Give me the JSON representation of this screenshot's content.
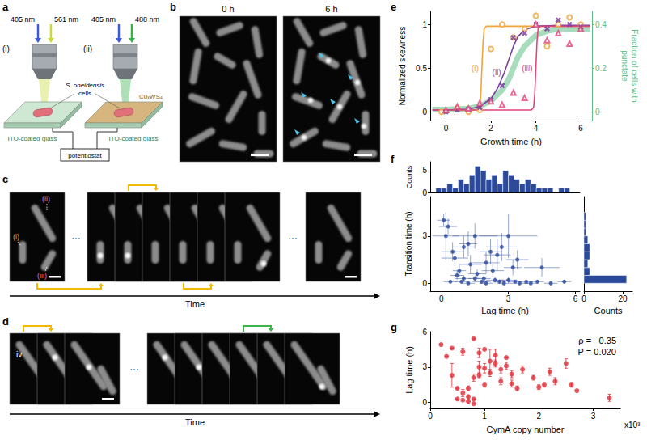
{
  "panel_labels": [
    "a",
    "b",
    "c",
    "d",
    "e",
    "f",
    "g"
  ],
  "schematic": {
    "setups": [
      {
        "label": "(i)",
        "lasers": [
          "405 nm",
          "561 nm"
        ],
        "substrate": "ITO-coated glass"
      },
      {
        "label": "(ii)",
        "lasers": [
          "405 nm",
          "488 nm"
        ],
        "substrate": "ITO-coated glass",
        "coating": "CuₓWS₄"
      }
    ],
    "cells": "S. oneidensis cells",
    "instrument": "potentiostat"
  },
  "micrographs": {
    "b": {
      "frames": [
        "0 h",
        "6 h"
      ]
    },
    "c": {
      "cells": [
        "(i)",
        "(ii)",
        "(iii)"
      ],
      "ellipsis": "...",
      "arrow": "Time"
    },
    "d": {
      "cells": [
        "iv"
      ],
      "ellipsis": "...",
      "arrow": "Time"
    }
  },
  "chart_data": [
    {
      "type": "line",
      "xlabel": "Growth time (h)",
      "ylabel": "Normalized skewness",
      "y2label": "Fraction of cells with punctate",
      "xlim": [
        -0.7,
        6.5
      ],
      "xticks": [
        0,
        2,
        4,
        6
      ],
      "ylim": [
        -0.1,
        1.15
      ],
      "yticks": [
        0,
        0.5,
        1
      ],
      "y2lim": [
        -0.04,
        0.46
      ],
      "y2ticks": [
        0,
        0.2,
        0.4
      ],
      "series": [
        {
          "type": "line",
          "annotation": "(i)",
          "color": "#f2a33a",
          "x": [
            -0.6,
            1.4,
            1.5,
            1.55,
            1.6,
            1.65,
            1.7,
            1.8,
            6.4
          ],
          "values": [
            0.02,
            0.02,
            0.05,
            0.2,
            0.5,
            0.8,
            0.95,
            0.98,
            0.98
          ]
        },
        {
          "type": "line",
          "annotation": "(ii)",
          "color": "#7b3f9e",
          "x": [
            -0.6,
            0,
            1,
            1.5,
            2,
            2.3,
            2.6,
            2.8,
            3,
            3.2,
            3.5,
            4,
            5,
            6.4
          ],
          "values": [
            0.02,
            0.02,
            0.03,
            0.06,
            0.15,
            0.27,
            0.45,
            0.6,
            0.75,
            0.86,
            0.94,
            0.98,
            0.99,
            0.99
          ]
        },
        {
          "type": "line",
          "annotation": "(iii)",
          "color": "#e0457b",
          "x": [
            -0.6,
            3.8,
            3.9,
            3.95,
            4.0,
            4.05,
            4.1,
            4.2,
            6.4
          ],
          "values": [
            0.02,
            0.02,
            0.05,
            0.2,
            0.5,
            0.8,
            0.95,
            0.98,
            0.98
          ]
        },
        {
          "type": "line",
          "axis": "y2",
          "color": "#5fbf86",
          "x": [
            -0.6,
            0,
            1,
            1.5,
            2,
            2.5,
            2.8,
            3,
            3.2,
            3.5,
            4,
            4.5,
            5,
            6.4
          ],
          "values": [
            0.01,
            0.01,
            0.015,
            0.025,
            0.05,
            0.1,
            0.15,
            0.2,
            0.25,
            0.3,
            0.35,
            0.37,
            0.38,
            0.38
          ]
        },
        {
          "type": "scatter",
          "marker": "circle",
          "color": "#f2a33a",
          "x": [
            -0.2,
            0.5,
            1.0,
            1.5,
            2.0,
            2.5,
            3.0,
            3.5,
            4.0,
            4.5,
            5.0,
            5.5,
            6.0
          ],
          "values": [
            0.0,
            0.04,
            0.0,
            0.02,
            0.72,
            1.0,
            0.85,
            0.95,
            1.1,
            0.75,
            1.0,
            1.08,
            1.0
          ]
        },
        {
          "type": "scatter",
          "marker": "cross",
          "color": "#7b3f9e",
          "x": [
            0,
            0.5,
            1,
            1.5,
            2,
            2.5,
            3,
            3.5,
            4,
            4.5,
            5,
            5.5,
            6
          ],
          "values": [
            0.0,
            0.02,
            0.03,
            0.05,
            0.14,
            0.3,
            0.85,
            0.9,
            1.0,
            0.95,
            1.05,
            1.0,
            0.97
          ]
        },
        {
          "type": "scatter",
          "marker": "triangle",
          "color": "#e0457b",
          "x": [
            0,
            0.5,
            1,
            1.5,
            2,
            2.5,
            3,
            3.5,
            4,
            4.5,
            5,
            5.5,
            6
          ],
          "values": [
            0.02,
            0.06,
            0.04,
            0.1,
            0.12,
            0.08,
            0.22,
            0.16,
            1.0,
            0.82,
            0.9,
            0.78,
            0.95
          ]
        }
      ]
    },
    {
      "type": "scatter",
      "color": "#2b4a9c",
      "xlabel": "Lag time (h)",
      "ylabel": "Transition time (h)",
      "xlim": [
        -0.5,
        6.2
      ],
      "xticks": [
        0,
        3,
        6
      ],
      "ylim": [
        -0.5,
        5.5
      ],
      "yticks": [
        0,
        3
      ],
      "x": [
        0.1,
        0.3,
        0.2,
        0.5,
        0.6,
        0.8,
        0.7,
        1.0,
        1.2,
        1.0,
        1.3,
        1.5,
        1.6,
        1.5,
        1.8,
        2.0,
        2.2,
        2.3,
        2.5,
        2.6,
        2.7,
        3.0,
        3.0,
        3.2,
        3.3,
        3.5,
        3.8,
        4.0,
        4.3,
        4.5,
        4.9,
        5.5,
        0.4,
        1.2,
        2.0,
        2.4,
        2.8,
        3.4,
        1.9,
        0.9
      ],
      "values": [
        4.0,
        3.6,
        3.0,
        2.0,
        1.6,
        0.8,
        0.5,
        0.3,
        2.5,
        2.3,
        1.2,
        3.0,
        0.6,
        0.3,
        0.1,
        1.3,
        2.0,
        0.8,
        1.8,
        0.1,
        2.3,
        3.0,
        0.2,
        1.0,
        0.1,
        0.0,
        0.1,
        0.0,
        0.1,
        1.0,
        0.0,
        0.1,
        0.1,
        0.0,
        0.0,
        0.2,
        0.0,
        1.5,
        0.3,
        0.1
      ],
      "x_err": [
        0.3,
        0.4,
        0.6,
        0.5,
        0.6,
        0.3,
        0.3,
        0.4,
        0.4,
        0.5,
        0.5,
        1.0,
        0.4,
        0.3,
        0.4,
        0.6,
        0.5,
        0.5,
        0.6,
        0.3,
        0.7,
        1.3,
        0.4,
        0.4,
        0.3,
        0.4,
        0.3,
        0.3,
        0.3,
        0.8,
        0.3,
        0.3,
        0.3,
        0.3,
        0.3,
        0.4,
        0.3,
        0.5,
        0.3,
        0.3
      ],
      "y_err": [
        0.4,
        0.5,
        1.5,
        0.6,
        0.5,
        0.4,
        0.3,
        0.2,
        0.8,
        0.7,
        0.6,
        0.8,
        0.3,
        0.2,
        0.1,
        0.7,
        0.8,
        0.4,
        1.0,
        0.1,
        0.9,
        1.4,
        0.2,
        0.5,
        0.1,
        0.1,
        0.1,
        0.1,
        0.1,
        0.6,
        0.1,
        0.1,
        0.1,
        0.1,
        0.1,
        0.2,
        0.1,
        0.6,
        0.2,
        0.1
      ]
    },
    {
      "type": "histogram",
      "color": "#2b4a9c",
      "ylabel": "Counts",
      "tick_labels": "y",
      "xlim": [
        -0.5,
        6.2
      ],
      "ylim": [
        0,
        7
      ],
      "yticks": [
        0,
        5
      ],
      "bins": [
        -0.25,
        0,
        0.25,
        0.5,
        0.75,
        1,
        1.25,
        1.5,
        1.75,
        2,
        2.25,
        2.5,
        2.75,
        3,
        3.25,
        3.5,
        3.75,
        4,
        4.25,
        4.5,
        4.75,
        5,
        5.25,
        5.5,
        5.75
      ],
      "counts": [
        1,
        1,
        2,
        1,
        3,
        2,
        4,
        6,
        5,
        3,
        4,
        2,
        5,
        4,
        3,
        2,
        3,
        2,
        1,
        1,
        1,
        0,
        1,
        1
      ]
    },
    {
      "type": "histogram",
      "orientation": "horizontal",
      "color": "#2b4a9c",
      "xlabel": "Counts",
      "tick_labels": "x",
      "xlim": [
        0,
        25
      ],
      "xticks": [
        0,
        20
      ],
      "ylim": [
        -0.5,
        5.5
      ],
      "bins": [
        0,
        0.5,
        1,
        1.5,
        2,
        2.5,
        3,
        3.5,
        4,
        4.5
      ],
      "counts": [
        22,
        3,
        2,
        3,
        3,
        2,
        1,
        1,
        1
      ]
    },
    {
      "type": "scatter",
      "color": "#e0303a",
      "xlabel": "CymA copy number",
      "ylabel": "Lag time (h)",
      "x_multiplier": "x10³",
      "annotations": [
        "ρ = −0.35",
        "P = 0.020"
      ],
      "xlim": [
        0,
        3.5
      ],
      "xticks": [
        0,
        1,
        2,
        3
      ],
      "ylim": [
        -0.5,
        6
      ],
      "yticks": [
        0,
        3,
        6
      ],
      "x": [
        0.2,
        0.3,
        0.4,
        0.4,
        0.5,
        0.5,
        0.6,
        0.6,
        0.6,
        0.7,
        0.7,
        0.7,
        0.8,
        0.8,
        0.8,
        0.8,
        0.9,
        0.9,
        0.9,
        1.0,
        1.0,
        1.0,
        1.1,
        1.1,
        1.2,
        1.2,
        1.3,
        1.3,
        1.4,
        1.4,
        1.5,
        1.5,
        1.6,
        1.7,
        1.9,
        2.0,
        2.1,
        2.2,
        2.3,
        2.5,
        2.6,
        2.7,
        3.3
      ],
      "values": [
        4.9,
        3.9,
        2.3,
        4.6,
        1.2,
        0.3,
        4.3,
        0.8,
        0.2,
        1.2,
        0.1,
        0.5,
        5.4,
        2.1,
        -0.1,
        0.3,
        3.0,
        4.2,
        2.3,
        2.9,
        4.5,
        1.5,
        3.5,
        2.5,
        4.0,
        3.3,
        1.8,
        2.8,
        3.8,
        3.1,
        2.4,
        1.6,
        1.2,
        2.8,
        2.1,
        1.3,
        1.5,
        2.6,
        1.8,
        3.3,
        1.5,
        1.0,
        0.4
      ],
      "y_err": [
        0,
        0,
        1.0,
        0,
        0,
        0,
        0.3,
        0.3,
        0,
        0.2,
        0.2,
        0.1,
        0,
        0.3,
        0,
        0,
        0.5,
        0.4,
        0.2,
        0.4,
        0,
        0.2,
        1.0,
        0.3,
        0.5,
        0.3,
        0.3,
        0.3,
        0,
        0.3,
        0.3,
        0.3,
        0.2,
        0.3,
        0.2,
        0.2,
        0.2,
        0.3,
        0.3,
        0.4,
        0.2,
        0,
        0.3
      ]
    }
  ]
}
